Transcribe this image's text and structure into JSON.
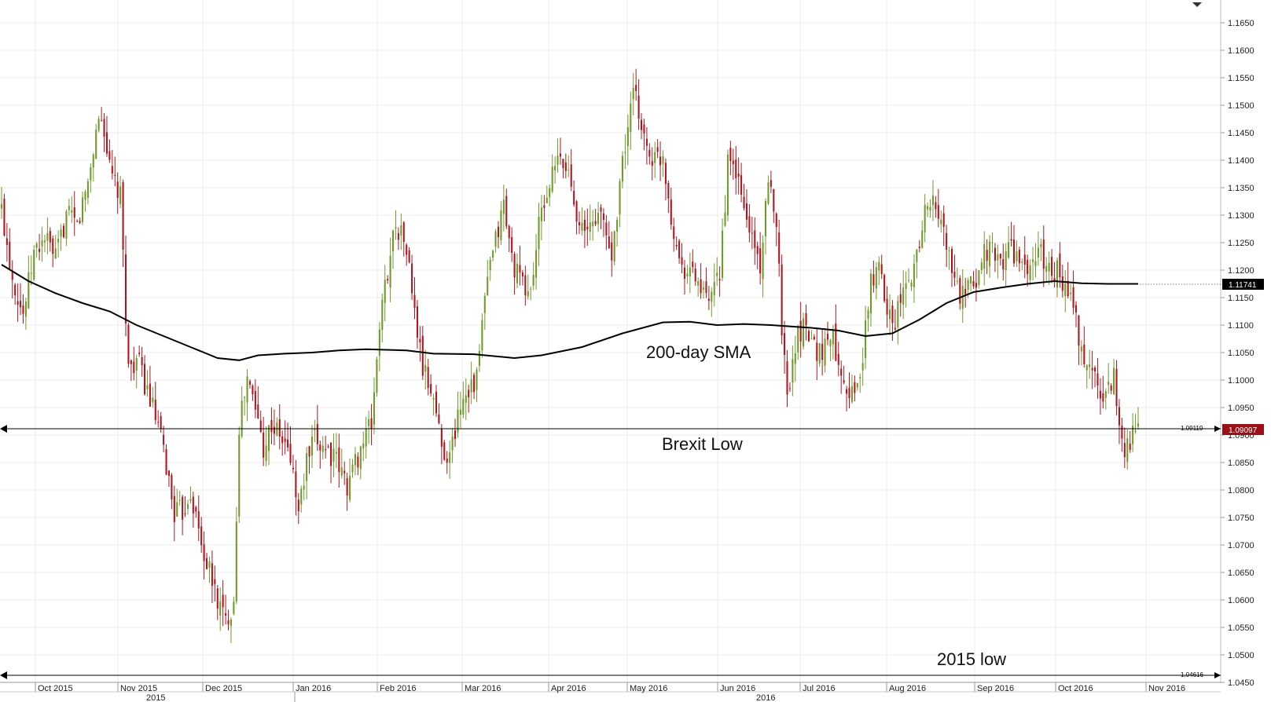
{
  "chart_data": {
    "type": "candlestick",
    "instrument": "EUR/USD",
    "title": "",
    "xlabel": "",
    "ylabel": "",
    "ylim": [
      1.045,
      1.169
    ],
    "y_ticks": [
      "1.1650",
      "1.1600",
      "1.1550",
      "1.1500",
      "1.1450",
      "1.1400",
      "1.1350",
      "1.1300",
      "1.1250",
      "1.1200",
      "1.1150",
      "1.1100",
      "1.1050",
      "1.1000",
      "1.0950",
      "1.0900",
      "1.0850",
      "1.0800",
      "1.0750",
      "1.0700",
      "1.0650",
      "1.0600",
      "1.0550",
      "1.0500",
      "1.0450"
    ],
    "x_months": [
      "Oct 2015",
      "Nov 2015",
      "Dec 2015",
      "Jan 2016",
      "Feb 2016",
      "Mar 2016",
      "Apr 2016",
      "May 2016",
      "Jun 2016",
      "Jul 2016",
      "Aug 2016",
      "Sep 2016",
      "Oct 2016",
      "Nov 2016"
    ],
    "x_years": [
      "2015",
      "2016"
    ],
    "colors": {
      "up": "#6f9a2a",
      "down": "#b0151f",
      "sma": "#000000",
      "current_tag": "#9b0f18",
      "sma_tag": "#000000"
    },
    "grid": "both",
    "current_price": "1.09097",
    "sma_value": "1.11741",
    "brexit_low_value": "1.09119",
    "low_2015_value": "1.04616",
    "annotations": {
      "sma": "200-day SMA",
      "brexit": "Brexit Low",
      "low2015": "2015 low"
    },
    "anchors": [
      [
        0,
        1.131
      ],
      [
        4,
        1.119
      ],
      [
        8,
        1.112
      ],
      [
        12,
        1.123
      ],
      [
        16,
        1.126
      ],
      [
        20,
        1.122
      ],
      [
        24,
        1.13
      ],
      [
        28,
        1.128
      ],
      [
        32,
        1.136
      ],
      [
        36,
        1.148
      ],
      [
        38,
        1.146
      ],
      [
        40,
        1.138
      ],
      [
        44,
        1.133
      ],
      [
        47,
        1.102
      ],
      [
        50,
        1.104
      ],
      [
        54,
        1.098
      ],
      [
        57,
        1.093
      ],
      [
        60,
        1.087
      ],
      [
        64,
        1.076
      ],
      [
        67,
        1.076
      ],
      [
        70,
        1.08
      ],
      [
        74,
        1.07
      ],
      [
        77,
        1.065
      ],
      [
        80,
        1.06
      ],
      [
        83,
        1.056
      ],
      [
        86,
        1.06
      ],
      [
        88,
        1.092
      ],
      [
        91,
        1.1
      ],
      [
        94,
        1.095
      ],
      [
        97,
        1.088
      ],
      [
        100,
        1.092
      ],
      [
        104,
        1.089
      ],
      [
        107,
        1.086
      ],
      [
        110,
        1.076
      ],
      [
        113,
        1.085
      ],
      [
        116,
        1.089
      ],
      [
        120,
        1.088
      ],
      [
        124,
        1.085
      ],
      [
        128,
        1.081
      ],
      [
        131,
        1.085
      ],
      [
        134,
        1.089
      ],
      [
        137,
        1.092
      ],
      [
        140,
        1.11
      ],
      [
        143,
        1.12
      ],
      [
        146,
        1.129
      ],
      [
        150,
        1.124
      ],
      [
        153,
        1.112
      ],
      [
        156,
        1.102
      ],
      [
        160,
        1.097
      ],
      [
        163,
        1.088
      ],
      [
        166,
        1.086
      ],
      [
        170,
        1.096
      ],
      [
        173,
        1.099
      ],
      [
        176,
        1.1
      ],
      [
        179,
        1.115
      ],
      [
        182,
        1.123
      ],
      [
        186,
        1.132
      ],
      [
        189,
        1.122
      ],
      [
        193,
        1.117
      ],
      [
        196,
        1.116
      ],
      [
        199,
        1.128
      ],
      [
        202,
        1.134
      ],
      [
        206,
        1.14
      ],
      [
        210,
        1.138
      ],
      [
        213,
        1.131
      ],
      [
        216,
        1.126
      ],
      [
        220,
        1.13
      ],
      [
        223,
        1.129
      ],
      [
        226,
        1.122
      ],
      [
        229,
        1.136
      ],
      [
        232,
        1.146
      ],
      [
        234,
        1.152
      ],
      [
        236,
        1.149
      ],
      [
        239,
        1.142
      ],
      [
        242,
        1.14
      ],
      [
        245,
        1.141
      ],
      [
        248,
        1.13
      ],
      [
        251,
        1.122
      ],
      [
        254,
        1.12
      ],
      [
        257,
        1.119
      ],
      [
        260,
        1.115
      ],
      [
        263,
        1.114
      ],
      [
        266,
        1.12
      ],
      [
        269,
        1.139
      ],
      [
        272,
        1.138
      ],
      [
        275,
        1.131
      ],
      [
        278,
        1.126
      ],
      [
        281,
        1.121
      ],
      [
        284,
        1.135
      ],
      [
        287,
        1.13
      ],
      [
        289,
        1.11
      ],
      [
        291,
        1.097
      ],
      [
        294,
        1.107
      ],
      [
        298,
        1.111
      ],
      [
        301,
        1.106
      ],
      [
        304,
        1.105
      ],
      [
        307,
        1.109
      ],
      [
        310,
        1.104
      ],
      [
        313,
        1.099
      ],
      [
        316,
        1.097
      ],
      [
        319,
        1.104
      ],
      [
        322,
        1.118
      ],
      [
        325,
        1.12
      ],
      [
        328,
        1.114
      ],
      [
        331,
        1.111
      ],
      [
        334,
        1.116
      ],
      [
        337,
        1.118
      ],
      [
        340,
        1.126
      ],
      [
        343,
        1.133
      ],
      [
        346,
        1.131
      ],
      [
        349,
        1.127
      ],
      [
        352,
        1.12
      ],
      [
        355,
        1.115
      ],
      [
        358,
        1.116
      ],
      [
        361,
        1.118
      ],
      [
        364,
        1.124
      ],
      [
        367,
        1.123
      ],
      [
        370,
        1.121
      ],
      [
        373,
        1.124
      ],
      [
        376,
        1.123
      ],
      [
        379,
        1.119
      ],
      [
        382,
        1.122
      ],
      [
        385,
        1.123
      ],
      [
        388,
        1.12
      ],
      [
        391,
        1.12
      ],
      [
        394,
        1.116
      ],
      [
        397,
        1.114
      ],
      [
        400,
        1.104
      ],
      [
        403,
        1.103
      ],
      [
        406,
        1.099
      ],
      [
        409,
        1.097
      ],
      [
        412,
        1.101
      ],
      [
        414,
        1.092
      ],
      [
        416,
        1.088
      ],
      [
        418,
        1.089
      ],
      [
        421,
        1.091
      ]
    ],
    "sma_points": [
      [
        0,
        1.121
      ],
      [
        10,
        1.118
      ],
      [
        20,
        1.1158
      ],
      [
        30,
        1.114
      ],
      [
        40,
        1.1125
      ],
      [
        50,
        1.11
      ],
      [
        60,
        1.108
      ],
      [
        70,
        1.106
      ],
      [
        80,
        1.104
      ],
      [
        88,
        1.1036
      ],
      [
        95,
        1.1045
      ],
      [
        105,
        1.1048
      ],
      [
        115,
        1.105
      ],
      [
        125,
        1.1054
      ],
      [
        135,
        1.1056
      ],
      [
        150,
        1.1054
      ],
      [
        160,
        1.1048
      ],
      [
        175,
        1.1047
      ],
      [
        190,
        1.104
      ],
      [
        200,
        1.1045
      ],
      [
        215,
        1.106
      ],
      [
        230,
        1.1085
      ],
      [
        245,
        1.1105
      ],
      [
        255,
        1.1106
      ],
      [
        265,
        1.11
      ],
      [
        275,
        1.1102
      ],
      [
        285,
        1.11
      ],
      [
        300,
        1.1095
      ],
      [
        310,
        1.109
      ],
      [
        320,
        1.108
      ],
      [
        330,
        1.1085
      ],
      [
        340,
        1.111
      ],
      [
        350,
        1.114
      ],
      [
        360,
        1.116
      ],
      [
        370,
        1.1168
      ],
      [
        380,
        1.1175
      ],
      [
        390,
        1.118
      ],
      [
        400,
        1.1176
      ],
      [
        410,
        1.1175
      ],
      [
        421,
        1.1175
      ]
    ]
  }
}
